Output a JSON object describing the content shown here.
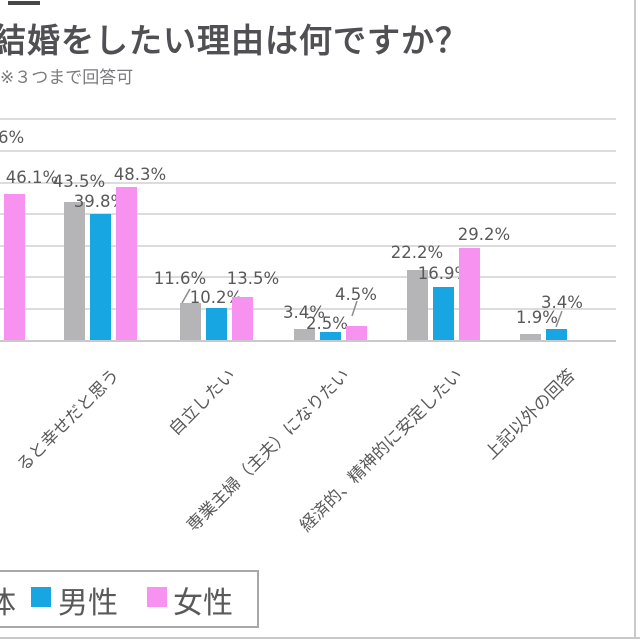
{
  "chart_data": {
    "type": "bar",
    "title": "結婚をしたい理由は何ですか？",
    "subtitle": "※３つまで回答可",
    "value_unit": "%",
    "ylim": [
      0,
      70
    ],
    "gridline_interval_pct": 10,
    "grid": true,
    "legend_position": "bottom",
    "cropped_value_label": "6%",
    "series": [
      {
        "name": "体",
        "color": "#b5b5b8",
        "legend_cropped": true
      },
      {
        "name": "男性",
        "color": "#18a6e2",
        "legend_cropped": false
      },
      {
        "name": "女性",
        "color": "#f892f0",
        "legend_cropped": false
      }
    ],
    "groups": [
      {
        "category": "",
        "values": [
          null,
          null,
          46.1
        ]
      },
      {
        "category": "ると幸せだと思う",
        "values": [
          43.5,
          39.8,
          48.3
        ]
      },
      {
        "category": "自立したい",
        "values": [
          11.6,
          10.2,
          13.5
        ]
      },
      {
        "category": "専業主婦（主夫）になりたい",
        "values": [
          3.4,
          2.5,
          4.5
        ]
      },
      {
        "category": "経済的、精神的に安定したい",
        "values": [
          22.2,
          16.9,
          29.2
        ]
      },
      {
        "category": "上記以外の回答",
        "values": [
          1.9,
          3.4,
          null
        ]
      }
    ],
    "callouts": [
      [
        2,
        0
      ],
      [
        3,
        2
      ],
      [
        5,
        1
      ]
    ]
  },
  "colors": {
    "bar_gray": "#b5b5b8",
    "bar_blue": "#18a6e2",
    "bar_pink": "#f892f0",
    "gridline": "#dcdcdf",
    "axis": "#c9c9cc",
    "text": "#595959",
    "title_text": "#4f4f54",
    "legend_border": "#a8a8ab"
  }
}
